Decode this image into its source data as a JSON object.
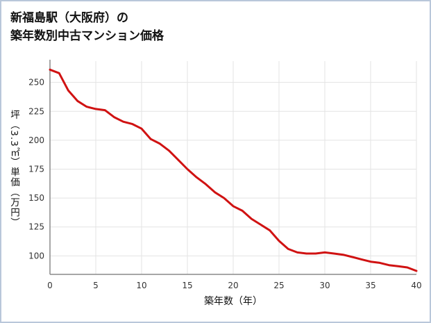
{
  "title": {
    "line1": "新福島駅（大阪府）の",
    "line2": "築年数別中古マンション価格"
  },
  "page": {
    "border_color": "#b9c7da",
    "background": "#ffffff"
  },
  "chart_data": {
    "type": "line",
    "title": "新福島駅（大阪府）の築年数別中古マンション価格",
    "xlabel": "築年数（年）",
    "ylabel": "坪（3.3㎡）単価（万円）",
    "x": [
      0,
      1,
      2,
      3,
      4,
      5,
      6,
      7,
      8,
      9,
      10,
      11,
      12,
      13,
      14,
      15,
      16,
      17,
      18,
      19,
      20,
      21,
      22,
      23,
      24,
      25,
      26,
      27,
      28,
      29,
      30,
      31,
      32,
      33,
      34,
      35,
      36,
      37,
      38,
      39,
      40
    ],
    "values": [
      261,
      258,
      243,
      234,
      229,
      227,
      226,
      220,
      216,
      214,
      210,
      201,
      197,
      191,
      183,
      175,
      168,
      162,
      155,
      150,
      143,
      139,
      132,
      127,
      122,
      113,
      106,
      103,
      102,
      102,
      103,
      102,
      101,
      99,
      97,
      95,
      94,
      92,
      91,
      90,
      87
    ],
    "xlim": [
      0,
      40
    ],
    "ylim": [
      84,
      266
    ],
    "x_ticks": [
      0,
      5,
      10,
      15,
      20,
      25,
      30,
      35,
      40
    ],
    "y_ticks": [
      100,
      125,
      150,
      175,
      200,
      225,
      250
    ],
    "grid": true,
    "legend": false,
    "line_color": "#d01212",
    "grid_color": "#e3e3e3",
    "axis_color": "#8a8a8a",
    "tick_label_color": "#333333"
  }
}
